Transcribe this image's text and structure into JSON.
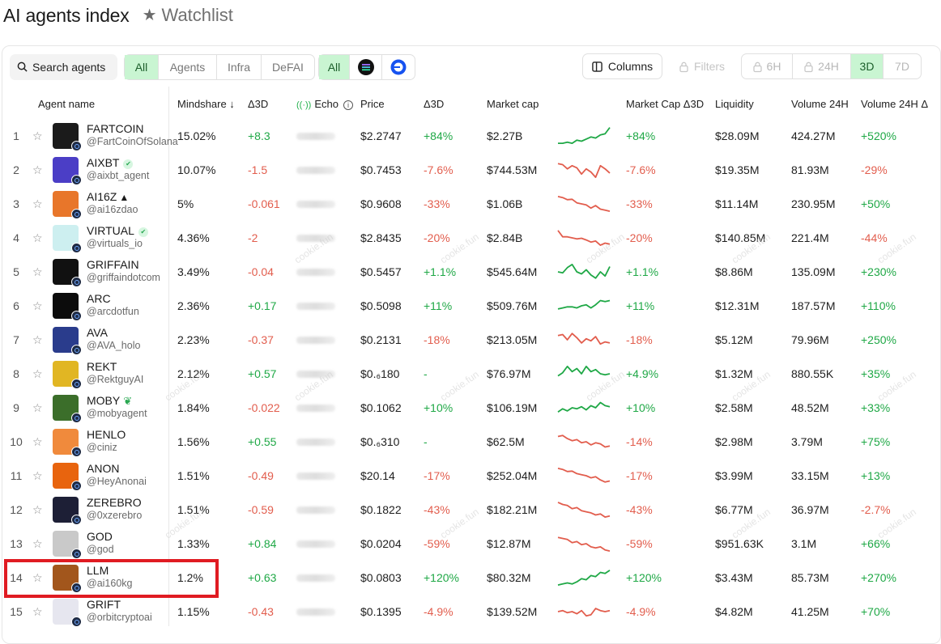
{
  "header": {
    "title": "AI agents index",
    "watchlist_label": "Watchlist"
  },
  "toolbar": {
    "search_label": "Search agents",
    "categories": [
      "All",
      "Agents",
      "Infra",
      "DeFAI"
    ],
    "active_category": "All",
    "chains": [
      "All",
      "solana-icon",
      "base-icon"
    ],
    "chain_all_label": "All",
    "columns_label": "Columns",
    "filters_label": "Filters",
    "timeframes": [
      "6H",
      "24H",
      "3D",
      "7D"
    ],
    "active_timeframe": "3D"
  },
  "columns": {
    "agent": "Agent name",
    "mindshare": "Mindshare ↓",
    "d3d": "Δ3D",
    "echo": "Echo",
    "price": "Price",
    "price_d3d": "Δ3D",
    "mcap": "Market cap",
    "mcap_d3d": "Market Cap Δ3D",
    "liquidity": "Liquidity",
    "volume": "Volume 24H",
    "volume_d": "Volume 24H Δ"
  },
  "watermark_text": "cookie.fun",
  "colors": {
    "positive": "#1fa846",
    "negative": "#e25d4d",
    "active_bg": "#c9f5d2",
    "highlight": "#e01b22"
  },
  "rows": [
    {
      "rank": "1",
      "name": "FARTCOIN",
      "handle": "@FartCoinOfSolana",
      "tag": "",
      "mindshare": "15.02%",
      "d3d": "+8.3",
      "price": "$2.2747",
      "price_chg": "+84%",
      "mcap": "$2.27B",
      "mcap_chg": "+84%",
      "liq": "$28.09M",
      "vol": "424.27M",
      "vol_chg": "+520%",
      "trend": [
        0.15,
        0.15,
        0.2,
        0.15,
        0.3,
        0.25,
        0.35,
        0.45,
        0.4,
        0.55,
        0.6,
        0.9
      ],
      "av": "#1b1b1b"
    },
    {
      "rank": "2",
      "name": "AIXBT",
      "handle": "@aixbt_agent",
      "tag": "verified",
      "mindshare": "10.07%",
      "d3d": "-1.5",
      "price": "$0.7453",
      "price_chg": "-7.6%",
      "mcap": "$744.53M",
      "mcap_chg": "-7.6%",
      "liq": "$19.35M",
      "vol": "81.93M",
      "vol_chg": "-29%",
      "trend": [
        0.8,
        0.75,
        0.55,
        0.7,
        0.6,
        0.3,
        0.55,
        0.4,
        0.15,
        0.7,
        0.55,
        0.35
      ],
      "av": "#4b3ec6"
    },
    {
      "rank": "3",
      "name": "AI16Z",
      "handle": "@ai16zdao",
      "tag": "emoji",
      "mindshare": "5%",
      "d3d": "-0.061",
      "price": "$0.9608",
      "price_chg": "-33%",
      "mcap": "$1.06B",
      "mcap_chg": "-33%",
      "liq": "$11.14M",
      "vol": "230.95M",
      "vol_chg": "+50%",
      "trend": [
        0.85,
        0.8,
        0.7,
        0.72,
        0.55,
        0.5,
        0.45,
        0.3,
        0.42,
        0.25,
        0.2,
        0.15
      ],
      "av": "#e8762a"
    },
    {
      "rank": "4",
      "name": "VIRTUAL",
      "handle": "@virtuals_io",
      "tag": "verified",
      "mindshare": "4.36%",
      "d3d": "-2",
      "price": "$2.8435",
      "price_chg": "-20%",
      "mcap": "$2.84B",
      "mcap_chg": "-20%",
      "liq": "$140.85M",
      "vol": "221.4M",
      "vol_chg": "-44%",
      "trend": [
        0.85,
        0.55,
        0.55,
        0.5,
        0.45,
        0.48,
        0.4,
        0.3,
        0.35,
        0.15,
        0.25,
        0.2
      ],
      "av": "#cdeff0"
    },
    {
      "rank": "5",
      "name": "GRIFFAIN",
      "handle": "@griffaindotcom",
      "tag": "",
      "mindshare": "3.49%",
      "d3d": "-0.04",
      "price": "$0.5457",
      "price_chg": "+1.1%",
      "mcap": "$545.64M",
      "mcap_chg": "+1.1%",
      "liq": "$8.86M",
      "vol": "135.09M",
      "vol_chg": "+230%",
      "trend": [
        0.5,
        0.45,
        0.7,
        0.85,
        0.5,
        0.4,
        0.6,
        0.35,
        0.2,
        0.5,
        0.3,
        0.75
      ],
      "av": "#111111"
    },
    {
      "rank": "6",
      "name": "ARC",
      "handle": "@arcdotfun",
      "tag": "",
      "mindshare": "2.36%",
      "d3d": "+0.17",
      "price": "$0.5098",
      "price_chg": "+11%",
      "mcap": "$509.76M",
      "mcap_chg": "+11%",
      "liq": "$12.31M",
      "vol": "187.57M",
      "vol_chg": "+110%",
      "trend": [
        0.35,
        0.4,
        0.45,
        0.45,
        0.4,
        0.5,
        0.55,
        0.4,
        0.55,
        0.75,
        0.7,
        0.75
      ],
      "av": "#0c0c0c"
    },
    {
      "rank": "7",
      "name": "AVA",
      "handle": "@AVA_holo",
      "tag": "",
      "mindshare": "2.23%",
      "d3d": "-0.37",
      "price": "$0.2131",
      "price_chg": "-18%",
      "mcap": "$213.05M",
      "mcap_chg": "-18%",
      "liq": "$5.12M",
      "vol": "79.96M",
      "vol_chg": "+250%",
      "trend": [
        0.7,
        0.75,
        0.5,
        0.8,
        0.6,
        0.35,
        0.55,
        0.45,
        0.65,
        0.3,
        0.4,
        0.35
      ],
      "av": "#2a3c8c"
    },
    {
      "rank": "8",
      "name": "REKT",
      "handle": "@RektguyAI",
      "tag": "",
      "mindshare": "2.12%",
      "d3d": "+0.57",
      "price_html": "$0.₆180",
      "price": "$0.₆180",
      "price_chg": "-",
      "mcap": "$76.97M",
      "mcap_chg": "+4.9%",
      "liq": "$1.32M",
      "vol": "880.55K",
      "vol_chg": "+35%",
      "trend": [
        0.4,
        0.55,
        0.85,
        0.6,
        0.75,
        0.5,
        0.85,
        0.6,
        0.7,
        0.5,
        0.45,
        0.5
      ],
      "av": "#e1b623"
    },
    {
      "rank": "9",
      "name": "MOBY",
      "handle": "@mobyagent",
      "tag": "sprout",
      "mindshare": "1.84%",
      "d3d": "-0.022",
      "price": "$0.1062",
      "price_chg": "+10%",
      "mcap": "$106.19M",
      "mcap_chg": "+10%",
      "liq": "$2.58M",
      "vol": "48.52M",
      "vol_chg": "+33%",
      "trend": [
        0.3,
        0.45,
        0.35,
        0.5,
        0.45,
        0.55,
        0.4,
        0.6,
        0.5,
        0.75,
        0.6,
        0.55
      ],
      "av": "#3b6e2a"
    },
    {
      "rank": "10",
      "name": "HENLO",
      "handle": "@ciniz",
      "tag": "",
      "mindshare": "1.56%",
      "d3d": "+0.55",
      "price": "$0.₆310",
      "price_chg": "-",
      "mcap": "$62.5M",
      "mcap_chg": "-14%",
      "liq": "$2.98M",
      "vol": "3.79M",
      "vol_chg": "+75%",
      "trend": [
        0.75,
        0.8,
        0.65,
        0.55,
        0.6,
        0.45,
        0.5,
        0.35,
        0.45,
        0.4,
        0.25,
        0.3
      ],
      "av": "#f08a3c"
    },
    {
      "rank": "11",
      "name": "ANON",
      "handle": "@HeyAnonai",
      "tag": "",
      "mindshare": "1.51%",
      "d3d": "-0.49",
      "price": "$20.14",
      "price_chg": "-17%",
      "mcap": "$252.04M",
      "mcap_chg": "-17%",
      "liq": "$3.99M",
      "vol": "33.15M",
      "vol_chg": "+13%",
      "trend": [
        0.85,
        0.8,
        0.7,
        0.72,
        0.6,
        0.55,
        0.5,
        0.4,
        0.45,
        0.3,
        0.2,
        0.25
      ],
      "av": "#e8640e"
    },
    {
      "rank": "12",
      "name": "ZEREBRO",
      "handle": "@0xzerebro",
      "tag": "",
      "mindshare": "1.51%",
      "d3d": "-0.59",
      "price": "$0.1822",
      "price_chg": "-43%",
      "mcap": "$182.21M",
      "mcap_chg": "-43%",
      "liq": "$6.77M",
      "vol": "36.97M",
      "vol_chg": "-2.7%",
      "trend": [
        0.85,
        0.75,
        0.7,
        0.55,
        0.6,
        0.45,
        0.4,
        0.35,
        0.25,
        0.3,
        0.15,
        0.2
      ],
      "av": "#1d1f36"
    },
    {
      "rank": "13",
      "name": "GOD",
      "handle": "@god",
      "tag": "",
      "mindshare": "1.33%",
      "d3d": "+0.84",
      "price": "$0.0204",
      "price_chg": "-59%",
      "mcap": "$12.87M",
      "mcap_chg": "-59%",
      "liq": "$951.63K",
      "vol": "3.1M",
      "vol_chg": "+66%",
      "trend": [
        0.8,
        0.75,
        0.7,
        0.55,
        0.6,
        0.45,
        0.5,
        0.35,
        0.3,
        0.35,
        0.2,
        0.15
      ],
      "av": "#c9c9c9"
    },
    {
      "rank": "14",
      "name": "LLM",
      "handle": "@ai160kg",
      "tag": "",
      "mindshare": "1.2%",
      "d3d": "+0.63",
      "price": "$0.0803",
      "price_chg": "+120%",
      "mcap": "$80.32M",
      "mcap_chg": "+120%",
      "liq": "$3.43M",
      "vol": "85.73M",
      "vol_chg": "+270%",
      "trend": [
        0.15,
        0.2,
        0.25,
        0.2,
        0.3,
        0.45,
        0.4,
        0.6,
        0.55,
        0.75,
        0.7,
        0.85
      ],
      "av": "#a2561c"
    },
    {
      "rank": "15",
      "name": "GRIFT",
      "handle": "@orbitcryptoai",
      "tag": "",
      "mindshare": "1.15%",
      "d3d": "-0.43",
      "price": "$0.1395",
      "price_chg": "-4.9%",
      "mcap": "$139.52M",
      "mcap_chg": "-4.9%",
      "liq": "$4.82M",
      "vol": "41.25M",
      "vol_chg": "+70%",
      "trend": [
        0.5,
        0.55,
        0.45,
        0.5,
        0.4,
        0.55,
        0.3,
        0.35,
        0.65,
        0.55,
        0.5,
        0.55
      ],
      "av": "#e6e6ef"
    }
  ]
}
